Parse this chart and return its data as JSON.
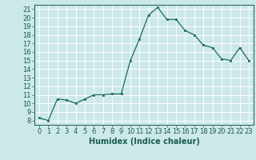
{
  "x": [
    0,
    1,
    2,
    3,
    4,
    5,
    6,
    7,
    8,
    9,
    10,
    11,
    12,
    13,
    14,
    15,
    16,
    17,
    18,
    19,
    20,
    21,
    22,
    23
  ],
  "y": [
    8.3,
    8.0,
    10.5,
    10.4,
    10.0,
    10.5,
    11.0,
    11.0,
    11.1,
    11.1,
    15.0,
    17.5,
    20.3,
    21.2,
    19.8,
    19.8,
    18.5,
    18.0,
    16.8,
    16.5,
    15.2,
    15.0,
    16.5,
    15.0
  ],
  "xlabel": "Humidex (Indice chaleur)",
  "ylim": [
    7.5,
    21.5
  ],
  "xlim": [
    -0.5,
    23.5
  ],
  "yticks": [
    8,
    9,
    10,
    11,
    12,
    13,
    14,
    15,
    16,
    17,
    18,
    19,
    20,
    21
  ],
  "xticks": [
    0,
    1,
    2,
    3,
    4,
    5,
    6,
    7,
    8,
    9,
    10,
    11,
    12,
    13,
    14,
    15,
    16,
    17,
    18,
    19,
    20,
    21,
    22,
    23
  ],
  "line_color": "#1a6b5e",
  "marker_color": "#1a6b5e",
  "bg_color": "#cce8e8",
  "grid_color": "#ffffff",
  "tick_label_color": "#1a5c50",
  "xlabel_color": "#1a5c50",
  "xlabel_fontsize": 7.0,
  "tick_fontsize": 6.0
}
